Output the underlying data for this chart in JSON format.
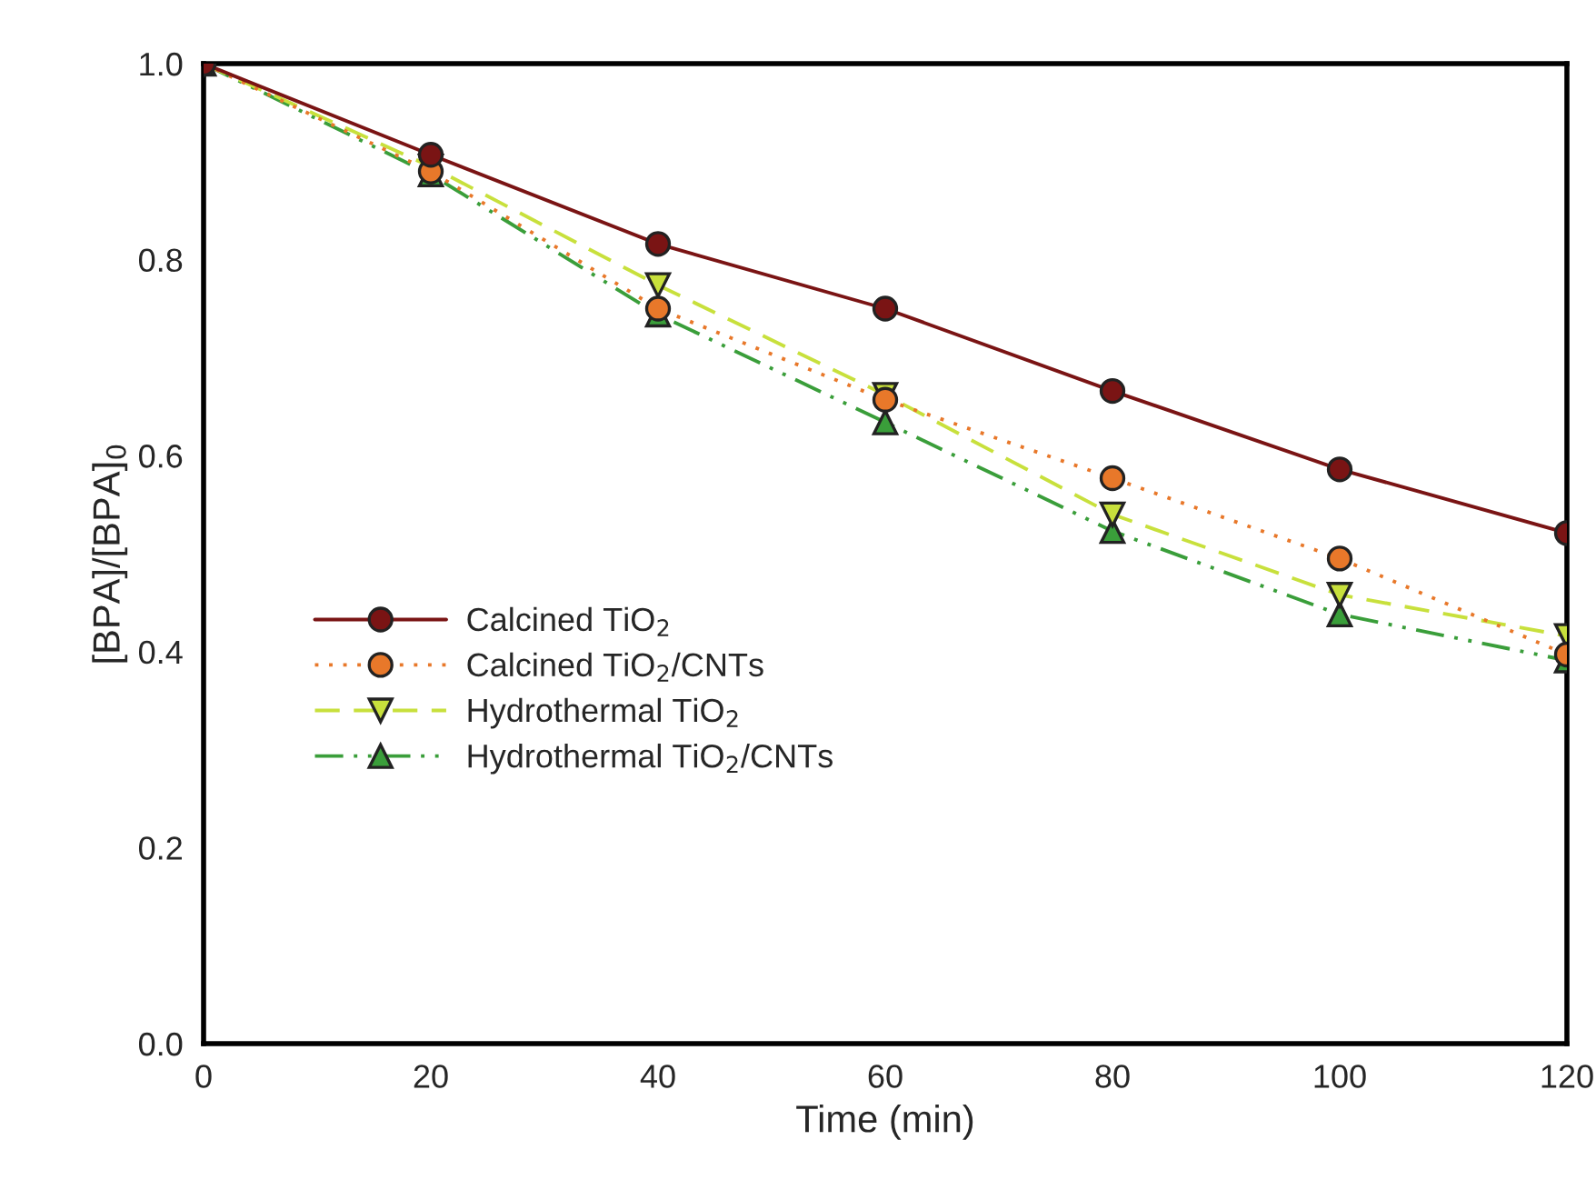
{
  "chart_data": {
    "type": "line",
    "xlabel": "Time (min)",
    "ylabel": "[BPA]/[BPA]$_{0}$",
    "x": [
      0,
      20,
      40,
      60,
      80,
      100,
      120
    ],
    "series": [
      {
        "name": "Calcined TiO$_{2}$",
        "color": "#7a1414",
        "line_style": "solid",
        "marker": "circle",
        "values": [
          1.0,
          0.907,
          0.816,
          0.75,
          0.666,
          0.586,
          0.521
        ]
      },
      {
        "name": "Calcined TiO$_{2}$/CNTs",
        "color": "#e8782a",
        "line_style": "dotted",
        "marker": "circle",
        "values": [
          1.0,
          0.89,
          0.75,
          0.657,
          0.577,
          0.495,
          0.397
        ]
      },
      {
        "name": "Hydrothermal TiO$_{2}$",
        "color": "#c8e03c",
        "line_style": "dashed",
        "marker": "triangle_down",
        "values": [
          1.0,
          0.895,
          0.774,
          0.662,
          0.54,
          0.458,
          0.416
        ]
      },
      {
        "name": "Hydrothermal TiO$_{2}$/CNTs",
        "color": "#3a9e3a",
        "line_style": "dashdot",
        "marker": "triangle",
        "values": [
          1.0,
          0.887,
          0.744,
          0.634,
          0.523,
          0.438,
          0.391
        ]
      }
    ],
    "xlim": [
      0,
      120
    ],
    "xticks": [
      0,
      20,
      40,
      60,
      80,
      100,
      120
    ],
    "ylim": [
      0.0,
      1.0
    ],
    "yticks": [
      {
        "value": 0,
        "label": "0.0"
      },
      {
        "value": 0.2,
        "label": "0.2"
      },
      {
        "value": 0.4,
        "label": "0.4"
      },
      {
        "value": 0.6,
        "label": "0.6"
      },
      {
        "value": 0.8,
        "label": "0.8"
      },
      {
        "value": 1,
        "label": "1.0"
      }
    ],
    "grid": false,
    "legend": "left"
  }
}
